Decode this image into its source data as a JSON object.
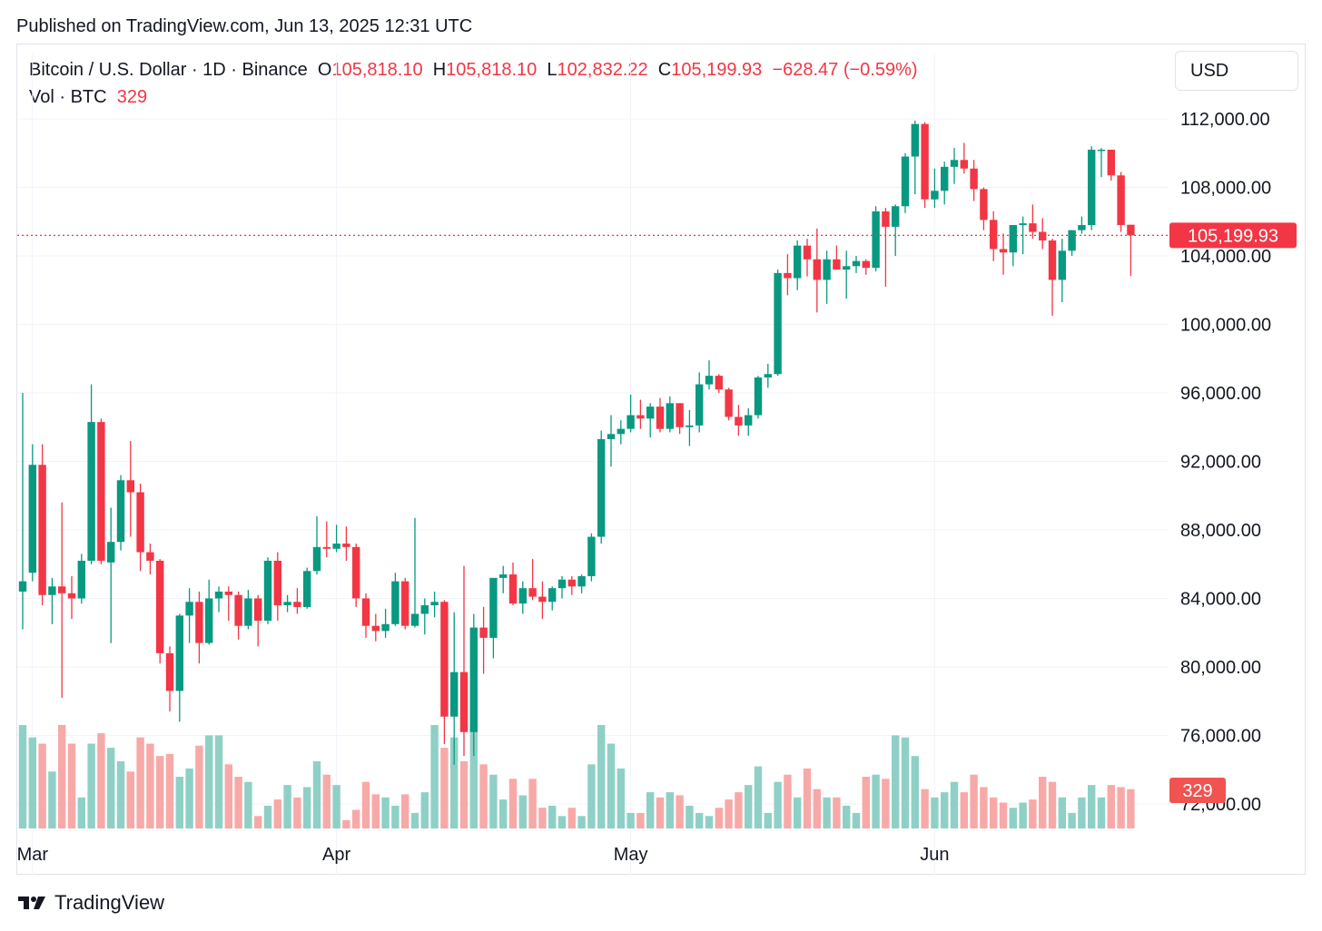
{
  "header": {
    "published": "Published on TradingView.com, Jun 13, 2025 12:31 UTC"
  },
  "legend": {
    "symbol": "Bitcoin / U.S. Dollar · 1D · Binance",
    "o_label": "O",
    "o_value": "105,818.10",
    "h_label": "H",
    "h_value": "105,818.10",
    "l_label": "L",
    "l_value": "102,832.22",
    "c_label": "C",
    "c_value": "105,199.93",
    "change": "−628.47 (−0.59%)",
    "vol_label": "Vol · BTC",
    "vol_value": "329"
  },
  "currency_button": "USD",
  "footer": {
    "brand": "TradingView"
  },
  "colors": {
    "up": "#089981",
    "down": "#f23645",
    "vol_up": "#8fd0c6",
    "vol_down": "#f7a9a8",
    "grid": "#f0f3fa",
    "text": "#131722"
  },
  "chart_data": {
    "type": "candlestick",
    "title": "Bitcoin / U.S. Dollar · 1D · Binance",
    "y_ticks": [
      "112,000.00",
      "108,000.00",
      "104,000.00",
      "100,000.00",
      "96,000.00",
      "92,000.00",
      "88,000.00",
      "84,000.00",
      "80,000.00",
      "76,000.00",
      "72,000.00"
    ],
    "y_tick_values": [
      112000,
      108000,
      104000,
      100000,
      96000,
      92000,
      88000,
      84000,
      80000,
      76000,
      72000
    ],
    "x_labels": [
      {
        "text": "Mar",
        "date": "2025-03-01"
      },
      {
        "text": "Apr",
        "date": "2025-04-01"
      },
      {
        "text": "May",
        "date": "2025-05-01"
      },
      {
        "text": "Jun",
        "date": "2025-06-01"
      }
    ],
    "ylim": [
      70600,
      113600
    ],
    "last_price": "105,199.93",
    "last_price_value": 105199.93,
    "last_volume": "329",
    "candles": [
      {
        "d": "2025-02-28",
        "o": 84400,
        "h": 96000,
        "l": 82200,
        "c": 85000
      },
      {
        "d": "2025-03-01",
        "o": 85500,
        "h": 93000,
        "l": 85000,
        "c": 91800
      },
      {
        "d": "2025-03-02",
        "o": 91800,
        "h": 93000,
        "l": 83600,
        "c": 84200
      },
      {
        "d": "2025-03-03",
        "o": 84200,
        "h": 85200,
        "l": 82500,
        "c": 84700
      },
      {
        "d": "2025-03-04",
        "o": 84700,
        "h": 89600,
        "l": 78200,
        "c": 84300
      },
      {
        "d": "2025-03-05",
        "o": 84300,
        "h": 85300,
        "l": 82800,
        "c": 84000
      },
      {
        "d": "2025-03-06",
        "o": 84000,
        "h": 86600,
        "l": 83700,
        "c": 86200
      },
      {
        "d": "2025-03-07",
        "o": 86200,
        "h": 96500,
        "l": 86000,
        "c": 94300
      },
      {
        "d": "2025-03-08",
        "o": 94300,
        "h": 94500,
        "l": 86000,
        "c": 86200
      },
      {
        "d": "2025-03-09",
        "o": 86100,
        "h": 89300,
        "l": 81400,
        "c": 87300
      },
      {
        "d": "2025-03-10",
        "o": 87300,
        "h": 91200,
        "l": 86800,
        "c": 90900
      },
      {
        "d": "2025-03-11",
        "o": 90900,
        "h": 93200,
        "l": 87600,
        "c": 90200
      },
      {
        "d": "2025-03-12",
        "o": 90200,
        "h": 90700,
        "l": 85600,
        "c": 86700
      },
      {
        "d": "2025-03-13",
        "o": 86700,
        "h": 87200,
        "l": 85400,
        "c": 86200
      },
      {
        "d": "2025-03-14",
        "o": 86200,
        "h": 86300,
        "l": 80200,
        "c": 80800
      },
      {
        "d": "2025-03-15",
        "o": 80800,
        "h": 81200,
        "l": 77400,
        "c": 78600
      },
      {
        "d": "2025-03-16",
        "o": 78600,
        "h": 83100,
        "l": 76800,
        "c": 83000
      },
      {
        "d": "2025-03-17",
        "o": 83000,
        "h": 84600,
        "l": 81400,
        "c": 83800
      },
      {
        "d": "2025-03-18",
        "o": 83800,
        "h": 84400,
        "l": 80200,
        "c": 81400
      },
      {
        "d": "2025-03-19",
        "o": 81400,
        "h": 85100,
        "l": 81300,
        "c": 84000
      },
      {
        "d": "2025-03-20",
        "o": 84000,
        "h": 84700,
        "l": 83200,
        "c": 84400
      },
      {
        "d": "2025-03-21",
        "o": 84400,
        "h": 84700,
        "l": 82700,
        "c": 84200
      },
      {
        "d": "2025-03-22",
        "o": 84200,
        "h": 84400,
        "l": 81600,
        "c": 82400
      },
      {
        "d": "2025-03-23",
        "o": 82400,
        "h": 84500,
        "l": 82200,
        "c": 84000
      },
      {
        "d": "2025-03-24",
        "o": 84000,
        "h": 84200,
        "l": 81200,
        "c": 82700
      },
      {
        "d": "2025-03-25",
        "o": 82700,
        "h": 86400,
        "l": 82500,
        "c": 86200
      },
      {
        "d": "2025-03-26",
        "o": 86200,
        "h": 86700,
        "l": 82700,
        "c": 83600
      },
      {
        "d": "2025-03-27",
        "o": 83600,
        "h": 84200,
        "l": 83200,
        "c": 83800
      },
      {
        "d": "2025-03-28",
        "o": 83800,
        "h": 84600,
        "l": 83100,
        "c": 83500
      },
      {
        "d": "2025-03-29",
        "o": 83500,
        "h": 85800,
        "l": 83400,
        "c": 85600
      },
      {
        "d": "2025-03-30",
        "o": 85600,
        "h": 88800,
        "l": 85400,
        "c": 87000
      },
      {
        "d": "2025-03-31",
        "o": 87000,
        "h": 88500,
        "l": 86400,
        "c": 86900
      },
      {
        "d": "2025-04-01",
        "o": 86900,
        "h": 88300,
        "l": 86700,
        "c": 87200
      },
      {
        "d": "2025-04-02",
        "o": 87200,
        "h": 88200,
        "l": 86200,
        "c": 87000
      },
      {
        "d": "2025-04-03",
        "o": 87000,
        "h": 87200,
        "l": 83500,
        "c": 84000
      },
      {
        "d": "2025-04-04",
        "o": 84000,
        "h": 84300,
        "l": 81700,
        "c": 82400
      },
      {
        "d": "2025-04-05",
        "o": 82400,
        "h": 83100,
        "l": 81500,
        "c": 82100
      },
      {
        "d": "2025-04-06",
        "o": 82100,
        "h": 83400,
        "l": 81700,
        "c": 82500
      },
      {
        "d": "2025-04-07",
        "o": 82500,
        "h": 85500,
        "l": 82400,
        "c": 85000
      },
      {
        "d": "2025-04-08",
        "o": 85000,
        "h": 85200,
        "l": 82200,
        "c": 82400
      },
      {
        "d": "2025-04-09",
        "o": 82400,
        "h": 88700,
        "l": 82300,
        "c": 83100
      },
      {
        "d": "2025-04-10",
        "o": 83100,
        "h": 84000,
        "l": 81900,
        "c": 83600
      },
      {
        "d": "2025-04-11",
        "o": 83600,
        "h": 84400,
        "l": 82900,
        "c": 83800
      },
      {
        "d": "2025-04-12",
        "o": 83800,
        "h": 83900,
        "l": 75500,
        "c": 77100
      },
      {
        "d": "2025-04-13",
        "o": 77100,
        "h": 83200,
        "l": 74300,
        "c": 79700
      },
      {
        "d": "2025-04-14",
        "o": 79700,
        "h": 85900,
        "l": 74800,
        "c": 76200
      },
      {
        "d": "2025-04-15",
        "o": 76200,
        "h": 83100,
        "l": 74800,
        "c": 82300
      },
      {
        "d": "2025-04-16",
        "o": 82300,
        "h": 83500,
        "l": 79600,
        "c": 81700
      },
      {
        "d": "2025-04-17",
        "o": 81700,
        "h": 85000,
        "l": 80500,
        "c": 85200
      },
      {
        "d": "2025-04-18",
        "o": 85200,
        "h": 85900,
        "l": 84300,
        "c": 85400
      },
      {
        "d": "2025-04-19",
        "o": 85400,
        "h": 86100,
        "l": 83600,
        "c": 83700
      },
      {
        "d": "2025-04-20",
        "o": 83700,
        "h": 85000,
        "l": 83100,
        "c": 84600
      },
      {
        "d": "2025-04-21",
        "o": 84600,
        "h": 86300,
        "l": 83900,
        "c": 84100
      },
      {
        "d": "2025-04-22",
        "o": 84100,
        "h": 85000,
        "l": 82800,
        "c": 83800
      },
      {
        "d": "2025-04-23",
        "o": 83800,
        "h": 84700,
        "l": 83300,
        "c": 84600
      },
      {
        "d": "2025-04-24",
        "o": 84600,
        "h": 85300,
        "l": 84000,
        "c": 85100
      },
      {
        "d": "2025-04-25",
        "o": 85100,
        "h": 85300,
        "l": 84200,
        "c": 84700
      },
      {
        "d": "2025-04-26",
        "o": 84700,
        "h": 85400,
        "l": 84300,
        "c": 85300
      },
      {
        "d": "2025-04-27",
        "o": 85300,
        "h": 87800,
        "l": 85000,
        "c": 87600
      },
      {
        "d": "2025-04-28",
        "o": 87600,
        "h": 93800,
        "l": 87200,
        "c": 93300
      },
      {
        "d": "2025-04-29",
        "o": 93300,
        "h": 94700,
        "l": 91700,
        "c": 93600
      },
      {
        "d": "2025-04-30",
        "o": 93600,
        "h": 94400,
        "l": 93000,
        "c": 93900
      },
      {
        "d": "2025-05-01",
        "o": 93900,
        "h": 95900,
        "l": 93700,
        "c": 94700
      },
      {
        "d": "2025-05-02",
        "o": 94700,
        "h": 95600,
        "l": 93900,
        "c": 94500
      },
      {
        "d": "2025-05-03",
        "o": 94500,
        "h": 95400,
        "l": 93400,
        "c": 95200
      },
      {
        "d": "2025-05-04",
        "o": 95200,
        "h": 95700,
        "l": 93700,
        "c": 93900
      },
      {
        "d": "2025-05-05",
        "o": 93900,
        "h": 95800,
        "l": 93700,
        "c": 95400
      },
      {
        "d": "2025-05-06",
        "o": 95400,
        "h": 95400,
        "l": 93600,
        "c": 94000
      },
      {
        "d": "2025-05-07",
        "o": 94000,
        "h": 95000,
        "l": 92900,
        "c": 94100
      },
      {
        "d": "2025-05-08",
        "o": 94100,
        "h": 97200,
        "l": 93700,
        "c": 96500
      },
      {
        "d": "2025-05-09",
        "o": 96500,
        "h": 97900,
        "l": 96200,
        "c": 97000
      },
      {
        "d": "2025-05-10",
        "o": 97000,
        "h": 97100,
        "l": 96000,
        "c": 96200
      },
      {
        "d": "2025-05-11",
        "o": 96200,
        "h": 96300,
        "l": 94400,
        "c": 94600
      },
      {
        "d": "2025-05-12",
        "o": 94600,
        "h": 95300,
        "l": 93500,
        "c": 94100
      },
      {
        "d": "2025-05-13",
        "o": 94100,
        "h": 95100,
        "l": 93500,
        "c": 94700
      },
      {
        "d": "2025-05-14",
        "o": 94700,
        "h": 97000,
        "l": 94500,
        "c": 96900
      },
      {
        "d": "2025-05-15",
        "o": 96900,
        "h": 97700,
        "l": 96300,
        "c": 97100
      },
      {
        "d": "2025-05-16",
        "o": 97100,
        "h": 103200,
        "l": 97000,
        "c": 103000
      },
      {
        "d": "2025-05-17",
        "o": 103000,
        "h": 104100,
        "l": 101700,
        "c": 102700
      },
      {
        "d": "2025-05-18",
        "o": 102700,
        "h": 104900,
        "l": 102000,
        "c": 104600
      },
      {
        "d": "2025-05-19",
        "o": 104600,
        "h": 105000,
        "l": 102800,
        "c": 103800
      },
      {
        "d": "2025-05-20",
        "o": 103800,
        "h": 105600,
        "l": 100700,
        "c": 102600
      },
      {
        "d": "2025-05-21",
        "o": 102600,
        "h": 104300,
        "l": 101200,
        "c": 103800
      },
      {
        "d": "2025-05-22",
        "o": 103800,
        "h": 104600,
        "l": 103200,
        "c": 103200
      },
      {
        "d": "2025-05-23",
        "o": 103200,
        "h": 104300,
        "l": 101500,
        "c": 103400
      },
      {
        "d": "2025-05-24",
        "o": 103400,
        "h": 104000,
        "l": 103000,
        "c": 103700
      },
      {
        "d": "2025-05-25",
        "o": 103700,
        "h": 103800,
        "l": 102900,
        "c": 103300
      },
      {
        "d": "2025-05-26",
        "o": 103300,
        "h": 106900,
        "l": 103100,
        "c": 106600
      },
      {
        "d": "2025-05-27",
        "o": 106600,
        "h": 106800,
        "l": 102200,
        "c": 105700
      },
      {
        "d": "2025-05-28",
        "o": 105700,
        "h": 107000,
        "l": 104000,
        "c": 106900
      },
      {
        "d": "2025-05-29",
        "o": 106900,
        "h": 110000,
        "l": 106500,
        "c": 109800
      },
      {
        "d": "2025-05-30",
        "o": 109800,
        "h": 111900,
        "l": 107600,
        "c": 111700
      },
      {
        "d": "2025-05-31",
        "o": 111700,
        "h": 111800,
        "l": 106800,
        "c": 107300
      },
      {
        "d": "2025-06-01",
        "o": 107300,
        "h": 109100,
        "l": 106800,
        "c": 107800
      },
      {
        "d": "2025-06-02",
        "o": 107800,
        "h": 109500,
        "l": 107000,
        "c": 109200
      },
      {
        "d": "2025-06-03",
        "o": 109200,
        "h": 110300,
        "l": 108200,
        "c": 109600
      },
      {
        "d": "2025-06-04",
        "o": 109600,
        "h": 110600,
        "l": 108800,
        "c": 109100
      },
      {
        "d": "2025-06-05",
        "o": 109100,
        "h": 109600,
        "l": 107200,
        "c": 107900
      },
      {
        "d": "2025-06-06",
        "o": 107900,
        "h": 108000,
        "l": 105500,
        "c": 106100
      },
      {
        "d": "2025-06-07",
        "o": 106100,
        "h": 106600,
        "l": 103700,
        "c": 104400
      },
      {
        "d": "2025-06-08",
        "o": 104400,
        "h": 105300,
        "l": 102900,
        "c": 104200
      },
      {
        "d": "2025-06-09",
        "o": 104200,
        "h": 105700,
        "l": 103400,
        "c": 105800
      },
      {
        "d": "2025-06-10",
        "o": 105800,
        "h": 106300,
        "l": 104100,
        "c": 105900
      },
      {
        "d": "2025-06-11",
        "o": 105900,
        "h": 107000,
        "l": 105000,
        "c": 105400
      },
      {
        "d": "2025-06-12",
        "o": 105400,
        "h": 106200,
        "l": 104400,
        "c": 104900
      },
      {
        "d": "2025-06-13",
        "o": 104900,
        "h": 105000,
        "l": 100500,
        "c": 102600
      },
      {
        "d": "2025-06-14",
        "o": 102600,
        "h": 105000,
        "l": 101300,
        "c": 104300
      },
      {
        "d": "2025-06-15",
        "o": 104300,
        "h": 105500,
        "l": 104000,
        "c": 105500
      },
      {
        "d": "2025-06-16",
        "o": 105500,
        "h": 106300,
        "l": 105300,
        "c": 105800
      },
      {
        "d": "2025-06-17",
        "o": 105800,
        "h": 110400,
        "l": 105500,
        "c": 110200
      },
      {
        "d": "2025-06-18",
        "o": 110200,
        "h": 110300,
        "l": 108600,
        "c": 110200
      },
      {
        "d": "2025-06-19",
        "o": 110200,
        "h": 110200,
        "l": 108400,
        "c": 108700
      },
      {
        "d": "2025-06-20",
        "o": 108700,
        "h": 108900,
        "l": 105400,
        "c": 105800
      },
      {
        "d": "2025-06-21",
        "o": 105818.1,
        "h": 105818.1,
        "l": 102832.22,
        "c": 105199.93
      }
    ],
    "volume_relative": [
      1.0,
      0.88,
      0.82,
      0.55,
      1.0,
      0.82,
      0.3,
      0.82,
      0.92,
      0.78,
      0.65,
      0.55,
      0.88,
      0.82,
      0.7,
      0.72,
      0.5,
      0.58,
      0.8,
      0.9,
      0.9,
      0.62,
      0.5,
      0.45,
      0.12,
      0.22,
      0.28,
      0.42,
      0.3,
      0.4,
      0.65,
      0.52,
      0.42,
      0.08,
      0.18,
      0.45,
      0.33,
      0.3,
      0.22,
      0.33,
      0.15,
      0.35,
      1.0,
      0.78,
      0.88,
      0.65,
      1.0,
      0.62,
      0.52,
      0.28,
      0.48,
      0.32,
      0.48,
      0.2,
      0.22,
      0.12,
      0.2,
      0.12,
      0.62,
      1.0,
      0.82,
      0.58,
      0.15,
      0.15,
      0.35,
      0.3,
      0.35,
      0.32,
      0.22,
      0.15,
      0.12,
      0.2,
      0.28,
      0.35,
      0.42,
      0.6,
      0.15,
      0.45,
      0.52,
      0.3,
      0.58,
      0.38,
      0.3,
      0.3,
      0.22,
      0.15,
      0.5,
      0.52,
      0.48,
      0.9,
      0.88,
      0.7,
      0.38,
      0.3,
      0.35,
      0.45,
      0.35,
      0.52,
      0.4,
      0.3,
      0.25,
      0.2,
      0.25,
      0.28,
      0.5,
      0.45,
      0.3,
      0.15,
      0.3,
      0.42,
      0.3,
      0.42,
      0.4,
      0.38
    ]
  }
}
